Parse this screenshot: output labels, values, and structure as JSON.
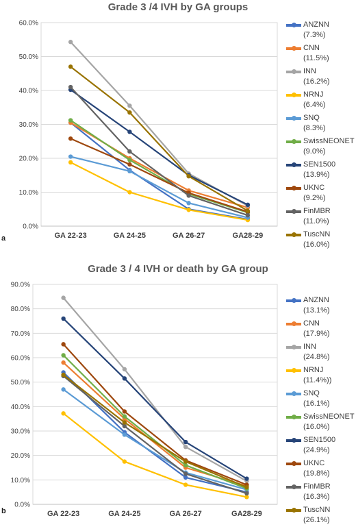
{
  "chart_data": [
    {
      "type": "line",
      "panel_label": "a",
      "title": "Grade 3 /4 IVH by GA groups",
      "categories": [
        "GA 22-23",
        "GA 24-25",
        "GA 26-27",
        "GA28-29"
      ],
      "ylim": [
        0,
        60
      ],
      "yticks": [
        "0.0%",
        "10.0%",
        "20.0%",
        "30.0%",
        "40.0%",
        "50.0%",
        "60.0%"
      ],
      "grid": true,
      "legend_position": "right",
      "series": [
        {
          "name": "ANZNN",
          "pct": "(7.3%)",
          "color": "#4472C4",
          "values": [
            30.5,
            16.5,
            5.0,
            2.0
          ]
        },
        {
          "name": "CNN",
          "pct": "(11.5%)",
          "color": "#ED7D31",
          "values": [
            30.5,
            20.0,
            10.5,
            5.5
          ]
        },
        {
          "name": "INN",
          "pct": "(16.2%)",
          "color": "#A5A5A5",
          "values": [
            54.3,
            35.5,
            15.5,
            6.0
          ]
        },
        {
          "name": "NRNJ",
          "pct": "(6.4%)",
          "color": "#FFC000",
          "values": [
            18.8,
            10.0,
            4.8,
            1.8
          ]
        },
        {
          "name": "SNQ",
          "pct": "(8.3%)",
          "color": "#5B9BD5",
          "values": [
            20.5,
            16.2,
            6.8,
            2.5
          ]
        },
        {
          "name": "SwissNEONET",
          "pct": "(9.0%)",
          "color": "#70AD47",
          "values": [
            31.2,
            19.5,
            9.5,
            4.0
          ]
        },
        {
          "name": "SEN1500",
          "pct": "(13.9%)",
          "color": "#264478",
          "values": [
            40.2,
            27.8,
            15.0,
            6.3
          ]
        },
        {
          "name": "UKNC",
          "pct": "(9.2%)",
          "color": "#9E480E",
          "values": [
            25.8,
            18.2,
            9.8,
            4.2
          ]
        },
        {
          "name": "FinMBR",
          "pct": "(11.0%)",
          "color": "#636363",
          "values": [
            41.0,
            22.0,
            9.0,
            3.2
          ]
        },
        {
          "name": "TuscNN",
          "pct": "(16.0%)",
          "color": "#997300",
          "values": [
            47.0,
            33.5,
            14.7,
            4.5
          ]
        }
      ]
    },
    {
      "type": "line",
      "panel_label": "b",
      "title": "Grade 3 / 4 IVH or death by GA group",
      "categories": [
        "GA 22-23",
        "GA 24-25",
        "GA 26-27",
        "GA28-29"
      ],
      "ylim": [
        0,
        90
      ],
      "yticks": [
        "0.0%",
        "10.0%",
        "20.0%",
        "30.0%",
        "40.0%",
        "50.0%",
        "60.0%",
        "70.0%",
        "80.0%",
        "90.0%"
      ],
      "grid": true,
      "legend_position": "right",
      "series": [
        {
          "name": "ANZNN",
          "pct": "(13.1%)",
          "color": "#4472C4",
          "values": [
            54.0,
            29.5,
            11.0,
            5.0
          ]
        },
        {
          "name": "CNN",
          "pct": "(17.9%)",
          "color": "#ED7D31",
          "values": [
            58.0,
            35.0,
            15.0,
            7.5
          ]
        },
        {
          "name": "INN",
          "pct": "(24.8%)",
          "color": "#A5A5A5",
          "values": [
            84.5,
            55.3,
            23.5,
            9.5
          ]
        },
        {
          "name": "NRNJ",
          "pct": "(11.4%))",
          "color": "#FFC000",
          "values": [
            37.2,
            17.5,
            8.0,
            3.0
          ]
        },
        {
          "name": "SNQ",
          "pct": "(16.1%)",
          "color": "#5B9BD5",
          "values": [
            47.0,
            28.5,
            13.0,
            6.0
          ]
        },
        {
          "name": "SwissNEONET",
          "pct": "(16.0%)",
          "color": "#70AD47",
          "values": [
            61.0,
            36.0,
            16.0,
            6.5
          ]
        },
        {
          "name": "SEN1500",
          "pct": "(24.9%)",
          "color": "#264478",
          "values": [
            76.0,
            51.5,
            25.5,
            10.5
          ]
        },
        {
          "name": "UKNC",
          "pct": "(19.8%)",
          "color": "#9E480E",
          "values": [
            65.5,
            38.0,
            18.0,
            8.0
          ]
        },
        {
          "name": "FinMBR",
          "pct": "(16.3%)",
          "color": "#636363",
          "values": [
            52.5,
            32.0,
            12.5,
            4.5
          ]
        },
        {
          "name": "TuscNN",
          "pct": "(26.1%)",
          "color": "#997300",
          "values": [
            53.0,
            33.5,
            17.5,
            7.0
          ]
        }
      ]
    }
  ]
}
